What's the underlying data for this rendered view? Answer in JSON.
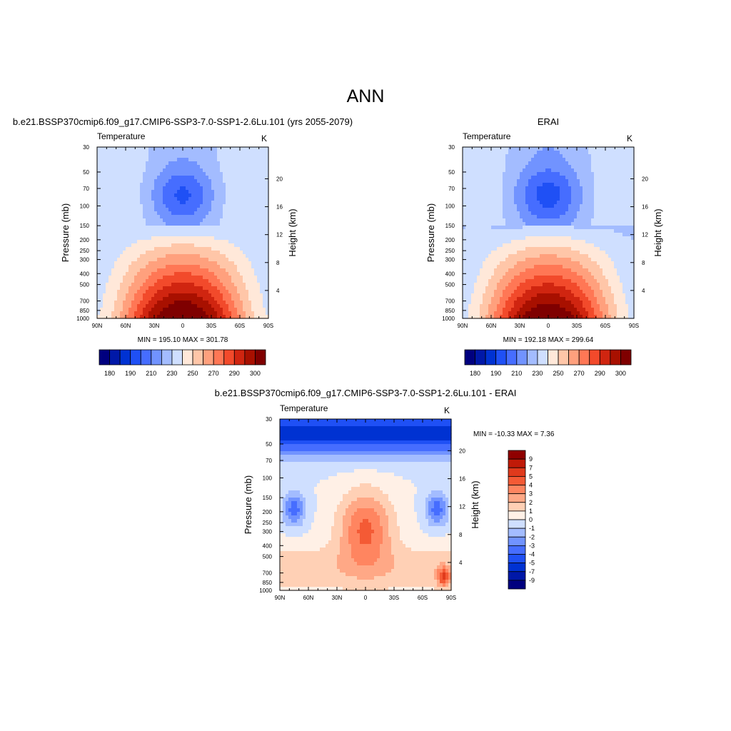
{
  "figure": {
    "title": "ANN"
  },
  "panels": [
    {
      "id": "model",
      "header": "b.e21.BSSP370cmip6.f09_g17.CMIP6-SSP3-7.0-SSP1-2.6Lu.101 (yrs 2055-2079)",
      "variable_label": "Temperature",
      "unit_label": "K",
      "ylabel_left": "Pressure (mb)",
      "ylabel_right": "Height (km)",
      "stats_text": "MIN = 195.10  MAX = 301.78"
    },
    {
      "id": "obs",
      "header": "ERAI",
      "variable_label": "Temperature",
      "unit_label": "K",
      "ylabel_left": "Pressure (mb)",
      "ylabel_right": "Height (km)",
      "stats_text": "MIN = 192.18  MAX = 299.64"
    },
    {
      "id": "diff",
      "header": "b.e21.BSSP370cmip6.f09_g17.CMIP6-SSP3-7.0-SSP1-2.6Lu.101 - ERAI",
      "variable_label": "Temperature",
      "unit_label": "K",
      "ylabel_left": "Pressure (mb)",
      "ylabel_right": "Height (km)",
      "stats_text": "MIN = -10.33  MAX =   7.36"
    }
  ],
  "colors": {
    "abs_palette": [
      "#00007f",
      "#0018a8",
      "#0032d2",
      "#1f50f5",
      "#466dff",
      "#7193ff",
      "#a3bcff",
      "#cfdfff",
      "#ffe8d9",
      "#ffc6a8",
      "#ffa07d",
      "#ff7755",
      "#f24a2b",
      "#d02510",
      "#a81000",
      "#7f0000"
    ],
    "diff_palette": [
      "#00007f",
      "#0018a8",
      "#0032d2",
      "#1f50f5",
      "#466dff",
      "#7193ff",
      "#a3bcff",
      "#cfdfff",
      "#fff0e6",
      "#ffd0b5",
      "#ffa886",
      "#ff8560",
      "#f45a35",
      "#e03a1c",
      "#c01a08",
      "#8f0000"
    ]
  },
  "chart_data": [
    {
      "type": "contour",
      "panel": "model",
      "x_tick_labels": [
        "90N",
        "60N",
        "30N",
        "0",
        "30S",
        "60S",
        "90S"
      ],
      "x_values": [
        90,
        60,
        30,
        0,
        -30,
        -60,
        -90
      ],
      "xlim": [
        90,
        -90
      ],
      "y_tick_labels": [
        "30",
        "50",
        "70",
        "100",
        "150",
        "200",
        "250",
        "300",
        "400",
        "500",
        "700",
        "850",
        "1000"
      ],
      "y_values": [
        30,
        50,
        70,
        100,
        150,
        200,
        250,
        300,
        400,
        500,
        700,
        850,
        1000
      ],
      "ylim": [
        1000,
        30
      ],
      "y_scale": "log",
      "right_axis_tick_labels": [
        "4",
        "8",
        "12",
        "16",
        "20"
      ],
      "right_axis_values": [
        4,
        8,
        12,
        16,
        20
      ],
      "contour_levels": [
        180,
        185,
        190,
        195,
        200,
        205,
        210,
        220,
        230,
        240,
        250,
        260,
        270,
        280,
        290,
        295,
        300
      ],
      "colorbar_labels": [
        "180",
        "190",
        "210",
        "230",
        "250",
        "270",
        "290",
        "300"
      ],
      "field_min": 195.1,
      "field_max": 301.78
    },
    {
      "type": "contour",
      "panel": "obs",
      "x_tick_labels": [
        "90N",
        "60N",
        "30N",
        "0",
        "30S",
        "60S",
        "90S"
      ],
      "x_values": [
        90,
        60,
        30,
        0,
        -30,
        -60,
        -90
      ],
      "xlim": [
        90,
        -90
      ],
      "y_tick_labels": [
        "30",
        "50",
        "70",
        "100",
        "150",
        "200",
        "250",
        "300",
        "400",
        "500",
        "700",
        "850",
        "1000"
      ],
      "y_values": [
        30,
        50,
        70,
        100,
        150,
        200,
        250,
        300,
        400,
        500,
        700,
        850,
        1000
      ],
      "ylim": [
        1000,
        30
      ],
      "y_scale": "log",
      "right_axis_tick_labels": [
        "4",
        "8",
        "12",
        "16",
        "20"
      ],
      "right_axis_values": [
        4,
        8,
        12,
        16,
        20
      ],
      "contour_levels": [
        180,
        185,
        190,
        195,
        200,
        205,
        210,
        220,
        230,
        240,
        250,
        260,
        270,
        280,
        290,
        295,
        300
      ],
      "colorbar_labels": [
        "180",
        "190",
        "210",
        "230",
        "250",
        "270",
        "290",
        "300"
      ],
      "field_min": 192.18,
      "field_max": 299.64
    },
    {
      "type": "contour",
      "panel": "diff",
      "x_tick_labels": [
        "90N",
        "60N",
        "30N",
        "0",
        "30S",
        "60S",
        "90S"
      ],
      "x_values": [
        90,
        60,
        30,
        0,
        -30,
        -60,
        -90
      ],
      "xlim": [
        90,
        -90
      ],
      "y_tick_labels": [
        "30",
        "50",
        "70",
        "100",
        "150",
        "200",
        "250",
        "300",
        "400",
        "500",
        "700",
        "850",
        "1000"
      ],
      "y_values": [
        30,
        50,
        70,
        100,
        150,
        200,
        250,
        300,
        400,
        500,
        700,
        850,
        1000
      ],
      "ylim": [
        1000,
        30
      ],
      "y_scale": "log",
      "right_axis_tick_labels": [
        "4",
        "8",
        "12",
        "16",
        "20"
      ],
      "right_axis_values": [
        4,
        8,
        12,
        16,
        20
      ],
      "contour_levels": [
        -9,
        -7,
        -5,
        -4,
        -3,
        -2,
        -1,
        0,
        1,
        2,
        3,
        4,
        5,
        7,
        9
      ],
      "colorbar_labels": [
        "9",
        "7",
        "5",
        "4",
        "3",
        "2",
        "1",
        "0",
        "-1",
        "-2",
        "-3",
        "-4",
        "-5",
        "-7",
        "-9"
      ],
      "field_min": -10.33,
      "field_max": 7.36
    }
  ]
}
